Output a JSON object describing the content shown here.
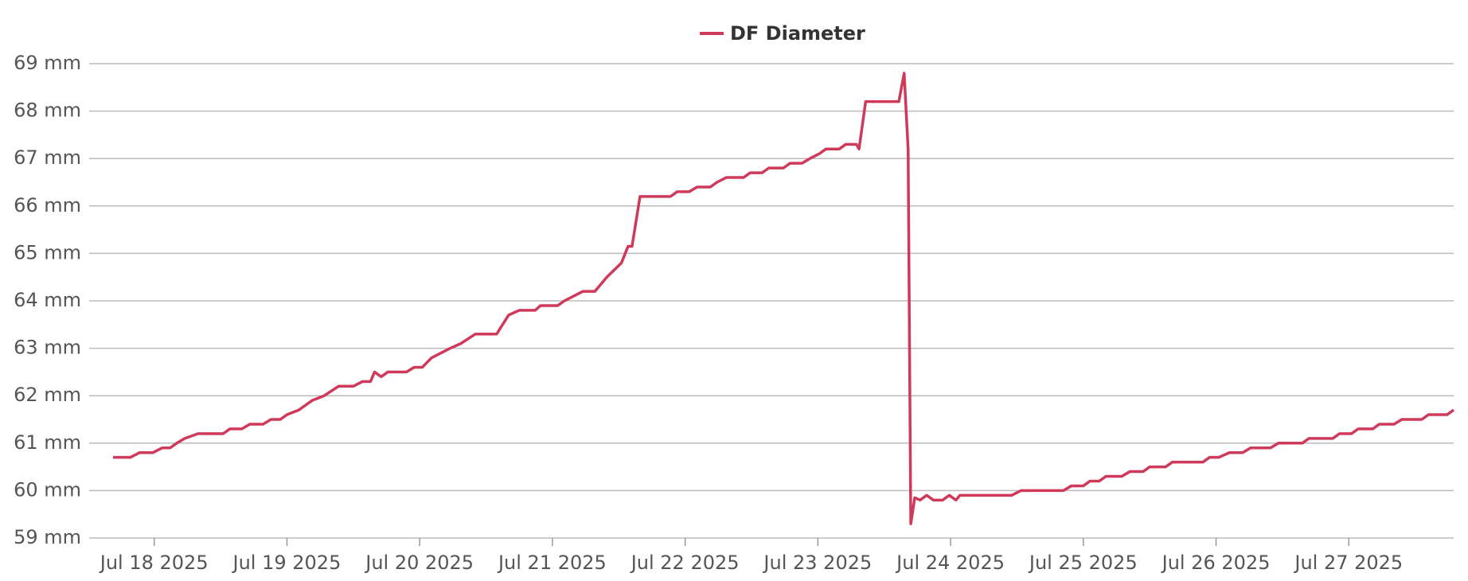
{
  "chart_data": {
    "type": "line",
    "legend_position": "top",
    "grid": true,
    "x": [
      17.69,
      17.82,
      17.89,
      17.99,
      18.06,
      18.12,
      18.17,
      18.23,
      18.33,
      18.52,
      18.57,
      18.66,
      18.72,
      18.82,
      18.88,
      18.95,
      19.0,
      19.09,
      19.19,
      19.28,
      19.39,
      19.5,
      19.57,
      19.63,
      19.66,
      19.71,
      19.76,
      19.9,
      19.96,
      20.02,
      20.09,
      20.16,
      20.23,
      20.31,
      20.42,
      20.58,
      20.67,
      20.75,
      20.87,
      20.91,
      21.04,
      21.09,
      21.16,
      21.23,
      21.32,
      21.41,
      21.52,
      21.57,
      21.6,
      21.66,
      21.89,
      21.94,
      22.03,
      22.09,
      22.19,
      22.24,
      22.31,
      22.44,
      22.49,
      22.58,
      22.63,
      22.74,
      22.79,
      22.88,
      22.94,
      23.01,
      23.06,
      23.16,
      23.21,
      23.29,
      23.31,
      23.36,
      23.4,
      23.61,
      23.65,
      23.68,
      23.7,
      23.73,
      23.77,
      23.82,
      23.87,
      23.94,
      23.99,
      24.04,
      24.07,
      24.46,
      24.53,
      24.85,
      24.91,
      25.0,
      25.05,
      25.12,
      25.17,
      25.29,
      25.35,
      25.45,
      25.5,
      25.62,
      25.67,
      25.9,
      25.95,
      26.02,
      26.1,
      26.2,
      26.26,
      26.41,
      26.47,
      26.65,
      26.7,
      26.88,
      26.93,
      27.02,
      27.07,
      27.18,
      27.23,
      27.34,
      27.4,
      27.55,
      27.6,
      27.74,
      27.79
    ],
    "series": [
      {
        "name": "DF Diameter",
        "color": "#d03a5a",
        "values": [
          60.7,
          60.7,
          60.8,
          60.8,
          60.9,
          60.9,
          61.0,
          61.1,
          61.2,
          61.2,
          61.3,
          61.3,
          61.4,
          61.4,
          61.5,
          61.5,
          61.6,
          61.7,
          61.9,
          62.0,
          62.2,
          62.2,
          62.3,
          62.3,
          62.5,
          62.4,
          62.5,
          62.5,
          62.6,
          62.6,
          62.8,
          62.9,
          63.0,
          63.1,
          63.3,
          63.3,
          63.7,
          63.8,
          63.8,
          63.9,
          63.9,
          64.0,
          64.1,
          64.2,
          64.2,
          64.5,
          64.8,
          65.15,
          65.15,
          66.2,
          66.2,
          66.3,
          66.3,
          66.4,
          66.4,
          66.5,
          66.6,
          66.6,
          66.7,
          66.7,
          66.8,
          66.8,
          66.9,
          66.9,
          67.0,
          67.1,
          67.2,
          67.2,
          67.3,
          67.3,
          67.2,
          68.2,
          68.2,
          68.2,
          68.8,
          67.2,
          59.3,
          59.85,
          59.8,
          59.9,
          59.8,
          59.8,
          59.9,
          59.8,
          59.9,
          59.9,
          60.0,
          60.0,
          60.1,
          60.1,
          60.2,
          60.2,
          60.3,
          60.3,
          60.4,
          60.4,
          60.5,
          60.5,
          60.6,
          60.6,
          60.7,
          60.7,
          60.8,
          60.8,
          60.9,
          60.9,
          61.0,
          61.0,
          61.1,
          61.1,
          61.2,
          61.2,
          61.3,
          61.3,
          61.4,
          61.4,
          61.5,
          61.5,
          61.6,
          61.6,
          61.7
        ]
      }
    ],
    "xlim": [
      17.51,
      27.79
    ],
    "xticks": [
      {
        "value": 18,
        "label": "Jul 18 2025"
      },
      {
        "value": 19,
        "label": "Jul 19 2025"
      },
      {
        "value": 20,
        "label": "Jul 20 2025"
      },
      {
        "value": 21,
        "label": "Jul 21 2025"
      },
      {
        "value": 22,
        "label": "Jul 22 2025"
      },
      {
        "value": 23,
        "label": "Jul 23 2025"
      },
      {
        "value": 24,
        "label": "Jul 24 2025"
      },
      {
        "value": 25,
        "label": "Jul 25 2025"
      },
      {
        "value": 26,
        "label": "Jul 26 2025"
      },
      {
        "value": 27,
        "label": "Jul 27 2025"
      }
    ],
    "ylim": [
      59,
      69
    ],
    "yticks": [
      {
        "value": 59,
        "label": "59 mm"
      },
      {
        "value": 60,
        "label": "60 mm"
      },
      {
        "value": 61,
        "label": "61 mm"
      },
      {
        "value": 62,
        "label": "62 mm"
      },
      {
        "value": 63,
        "label": "63 mm"
      },
      {
        "value": 64,
        "label": "64 mm"
      },
      {
        "value": 65,
        "label": "65 mm"
      },
      {
        "value": 66,
        "label": "66 mm"
      },
      {
        "value": 67,
        "label": "67 mm"
      },
      {
        "value": 68,
        "label": "68 mm"
      },
      {
        "value": 69,
        "label": "69 mm"
      }
    ]
  }
}
